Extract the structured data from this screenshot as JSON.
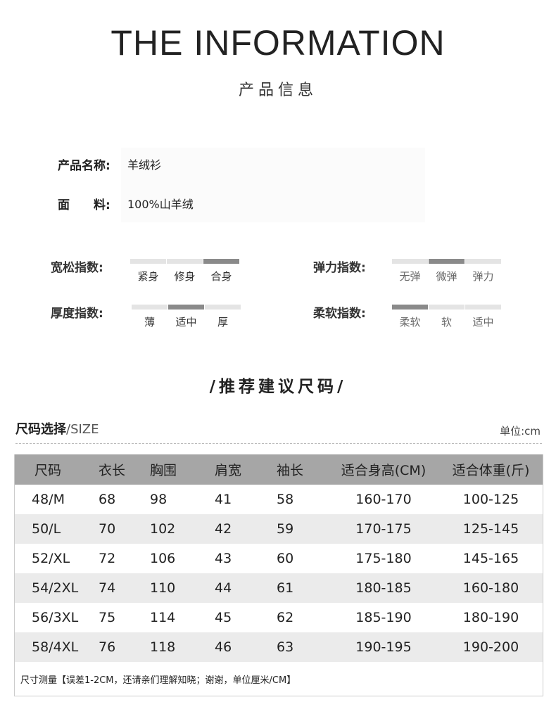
{
  "header": {
    "title": "THE INFORMATION",
    "subtitle": "产品信息"
  },
  "info": [
    {
      "label": "产品名称:",
      "value": "羊绒衫"
    },
    {
      "label": "面　　料:",
      "value": "100%山羊绒"
    }
  ],
  "indices": [
    {
      "label": "宽松指数:",
      "options": [
        "紧身",
        "修身",
        "合身"
      ],
      "selected": 2
    },
    {
      "label": "弹力指数:",
      "options": [
        "无弹",
        "微弹",
        "弹力"
      ],
      "selected": 1
    },
    {
      "label": "厚度指数:",
      "options": [
        "薄",
        "适中",
        "厚"
      ],
      "selected": 1
    },
    {
      "label": "柔软指数:",
      "options": [
        "柔软",
        "软",
        "适中"
      ],
      "selected": 0
    }
  ],
  "recommend": "/推荐建议尺码/",
  "size": {
    "title": "尺码选择",
    "title_en": "/SIZE",
    "unit": "单位:cm",
    "headers": [
      "尺码",
      "衣长",
      "胸围",
      "肩宽",
      "袖长",
      "适合身高(CM)",
      "适合体重(斤)"
    ],
    "rows": [
      [
        "48/M",
        "68",
        "98",
        "41",
        "58",
        "160-170",
        "100-125"
      ],
      [
        "50/L",
        "70",
        "102",
        "42",
        "59",
        "170-175",
        "125-145"
      ],
      [
        "52/XL",
        "72",
        "106",
        "43",
        "60",
        "175-180",
        "145-165"
      ],
      [
        "54/2XL",
        "74",
        "110",
        "44",
        "61",
        "180-185",
        "160-180"
      ],
      [
        "56/3XL",
        "75",
        "114",
        "45",
        "62",
        "185-190",
        "180-190"
      ],
      [
        "58/4XL",
        "76",
        "118",
        "46",
        "63",
        "190-195",
        "190-200"
      ]
    ],
    "note": "尺寸测量【误差1-2CM，还请亲们理解知晓；谢谢，单位厘米/CM】"
  },
  "colors": {
    "bar_on": "#8a8a8a",
    "bar_off": "#e4e4e4",
    "table_header": "#a6a6a6",
    "row_alt": "#ebebeb"
  }
}
